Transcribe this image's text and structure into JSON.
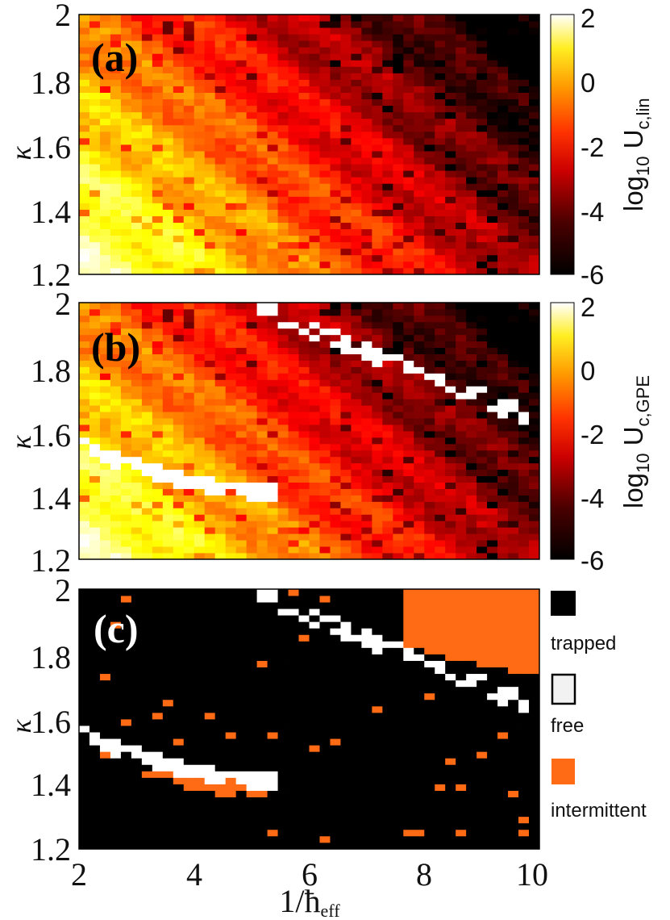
{
  "chart_data": [
    {
      "type": "heatmap",
      "panel_label": "(a)",
      "xlim": [
        2,
        10
      ],
      "ylim": [
        1.2,
        2.0
      ],
      "yticks": [
        "1.2",
        "1.4",
        "1.6",
        "1.8",
        "2"
      ],
      "ylabel": "κ",
      "grid_size": [
        44,
        40
      ],
      "colorbar": {
        "label": "log10 U_c,lin",
        "label_main": "log",
        "label_sub": "10",
        "label_U": " U",
        "label_usub": "c,lin",
        "ticks": [
          "2",
          "0",
          "-2",
          "-4",
          "-6"
        ],
        "range": [
          -6,
          2
        ],
        "colormap": "hot"
      }
    },
    {
      "type": "heatmap",
      "panel_label": "(b)",
      "xlim": [
        2,
        10
      ],
      "ylim": [
        1.2,
        2.0
      ],
      "yticks": [
        "1.2",
        "1.4",
        "1.6",
        "1.8",
        "2"
      ],
      "ylabel": "κ",
      "grid_size": [
        44,
        40
      ],
      "colorbar": {
        "label": "log10 U_c,GPE",
        "label_main": "log",
        "label_sub": "10",
        "label_U": " U",
        "label_usub": "c,GPE",
        "ticks": [
          "2",
          "0",
          "-2",
          "-4",
          "-6"
        ],
        "range": [
          -6,
          2
        ],
        "colormap": "hot"
      }
    },
    {
      "type": "heatmap",
      "panel_label": "(c)",
      "xlim": [
        2,
        10
      ],
      "ylim": [
        1.2,
        2.0
      ],
      "xticks": [
        "2",
        "4",
        "6",
        "8",
        "10"
      ],
      "yticks": [
        "1.2",
        "1.4",
        "1.6",
        "1.8",
        "2"
      ],
      "ylabel": "κ",
      "xlabel": "1/ħ",
      "xlabel_sub": "eff",
      "grid_size": [
        44,
        40
      ],
      "legend": [
        {
          "label": "trapped",
          "color": "#000000"
        },
        {
          "label": "free",
          "color": "#f2f2f2"
        },
        {
          "label": "intermittent",
          "color": "#ff6a14"
        }
      ]
    }
  ]
}
